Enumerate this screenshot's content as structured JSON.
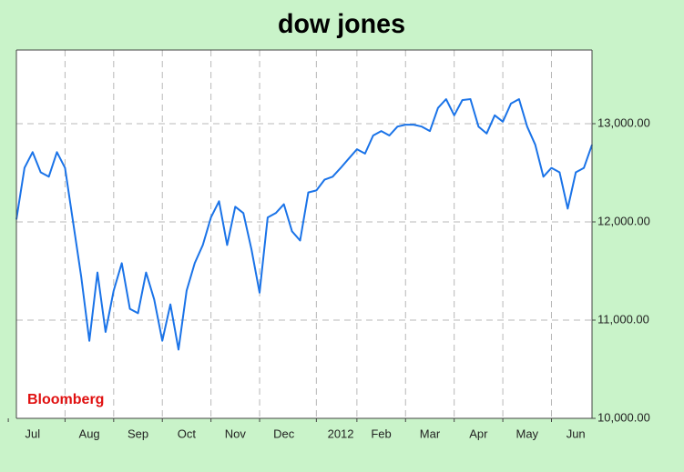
{
  "chart_data": {
    "type": "line",
    "title": "dow jones",
    "annotation": "Bloomberg",
    "categories": [
      null,
      null,
      "Jul",
      null,
      null,
      null,
      null,
      null,
      null,
      "Aug",
      null,
      null,
      null,
      null,
      null,
      "Sep",
      null,
      null,
      null,
      null,
      null,
      "Oct",
      null,
      null,
      null,
      null,
      null,
      "Nov",
      null,
      null,
      null,
      null,
      null,
      "Dec",
      null,
      null,
      null,
      null,
      null,
      null,
      "2012",
      null,
      null,
      null,
      null,
      "Feb",
      null,
      null,
      null,
      null,
      null,
      "Mar",
      null,
      null,
      null,
      null,
      null,
      "Apr",
      null,
      null,
      null,
      null,
      null,
      "May",
      null,
      null,
      null,
      null,
      null,
      "Jun",
      null,
      null
    ],
    "series": [
      {
        "name": "Dow Jones",
        "color": "#1a73e8",
        "values": [
          12025,
          12550,
          12710,
          12505,
          12460,
          12710,
          12550,
          11995,
          11440,
          10790,
          11485,
          10880,
          11300,
          11580,
          11115,
          11070,
          11485,
          11210,
          10790,
          11160,
          10700,
          11300,
          11580,
          11765,
          12045,
          12210,
          11765,
          12155,
          12090,
          11720,
          11280,
          12045,
          12090,
          12180,
          11905,
          11810,
          12300,
          12320,
          12430,
          12460,
          12550,
          12645,
          12740,
          12695,
          12880,
          12925,
          12880,
          12970,
          12990,
          12990,
          12970,
          12925,
          13160,
          13250,
          13085,
          13240,
          13250,
          12970,
          12900,
          13085,
          13020,
          13205,
          13250,
          12970,
          12785,
          12460,
          12550,
          12505,
          12135,
          12505,
          12550,
          12785
        ]
      }
    ],
    "ylim": [
      10000,
      13750
    ],
    "yticks": [
      {
        "value": 10000,
        "label": "10,000.00"
      },
      {
        "value": 11000,
        "label": "11,000.00"
      },
      {
        "value": 12000,
        "label": "12,000.00"
      },
      {
        "value": 13000,
        "label": "13,000.00"
      }
    ],
    "grid": true
  }
}
